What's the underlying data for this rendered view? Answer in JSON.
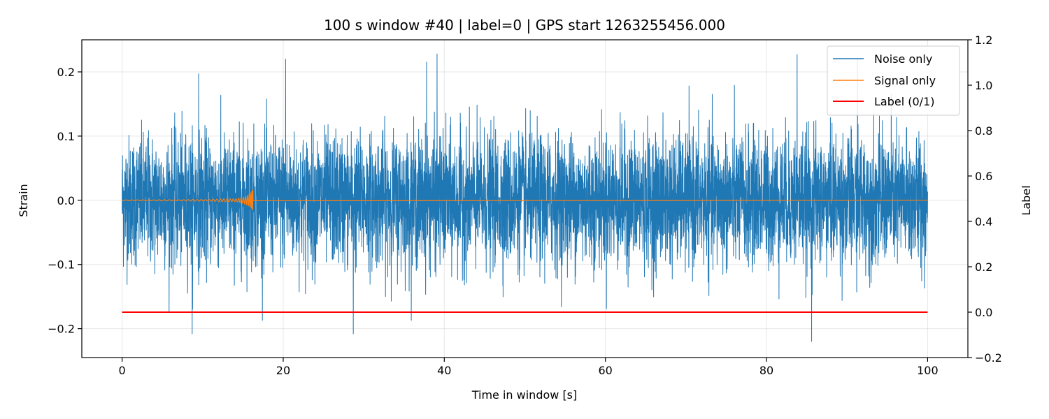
{
  "chart_data": {
    "type": "line",
    "title": "100 s window #40 | label=0 | GPS start 1263255456.000",
    "xlabel": "Time in window [s]",
    "ylabel": "Strain",
    "y2label": "Label",
    "xlim": [
      -5,
      105
    ],
    "ylim": [
      -0.245,
      0.25
    ],
    "y2lim": [
      -0.2,
      1.2
    ],
    "x_ticks": [
      0,
      20,
      40,
      60,
      80,
      100
    ],
    "x_tick_labels": [
      "0",
      "20",
      "40",
      "60",
      "80",
      "100"
    ],
    "y_ticks": [
      -0.2,
      -0.1,
      0.0,
      0.1,
      0.2
    ],
    "y_tick_labels": [
      "−0.2",
      "−0.1",
      "0.0",
      "0.1",
      "0.2"
    ],
    "y2_ticks": [
      -0.2,
      0.0,
      0.2,
      0.4,
      0.6,
      0.8,
      1.0,
      1.2
    ],
    "y2_tick_labels": [
      "−0.2",
      "0.0",
      "0.2",
      "0.4",
      "0.6",
      "0.8",
      "1.0",
      "1.2"
    ],
    "grid": true,
    "legend_position": "top-right",
    "series": [
      {
        "name": "Noise only",
        "color": "#1f77b4",
        "axis": "left",
        "x_range": [
          0,
          100
        ],
        "typical_band": [
          -0.11,
          0.11
        ],
        "peaks": [
          {
            "x": 8.7,
            "y": -0.208
          },
          {
            "x": 9.5,
            "y": 0.197
          },
          {
            "x": 20.3,
            "y": 0.22
          },
          {
            "x": 28.7,
            "y": -0.208
          },
          {
            "x": 37.8,
            "y": 0.215
          },
          {
            "x": 39.1,
            "y": 0.228
          },
          {
            "x": 85.6,
            "y": -0.22
          },
          {
            "x": 83.8,
            "y": 0.227
          },
          {
            "x": 91.3,
            "y": 0.22
          }
        ]
      },
      {
        "name": "Signal only",
        "color": "#ff7f0e",
        "axis": "left",
        "x_range": [
          0,
          100
        ],
        "chirp": {
          "start": 0.0,
          "end": 16.3,
          "peak_amplitude": 0.021
        }
      },
      {
        "name": "Label (0/1)",
        "color": "#ff0000",
        "axis": "right",
        "x": [
          0,
          100
        ],
        "y": [
          0,
          0
        ]
      }
    ]
  }
}
